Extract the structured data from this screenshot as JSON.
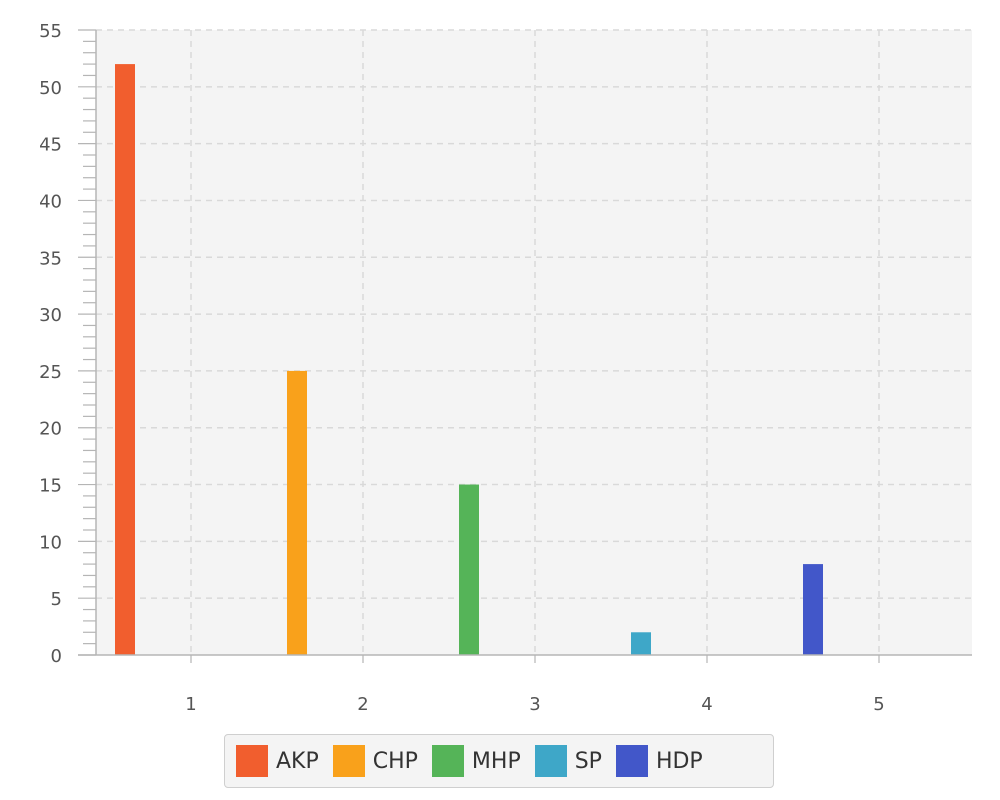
{
  "chart_data": {
    "type": "bar",
    "categories": [
      "1",
      "2",
      "3",
      "4",
      "5"
    ],
    "series": [
      {
        "name": "AKP",
        "color": "#f15e2e",
        "values": [
          52,
          null,
          null,
          null,
          null
        ]
      },
      {
        "name": "CHP",
        "color": "#f9a11b",
        "values": [
          null,
          25,
          null,
          null,
          null
        ]
      },
      {
        "name": "MHP",
        "color": "#55b458",
        "values": [
          null,
          null,
          15,
          null,
          null
        ]
      },
      {
        "name": "SP",
        "color": "#3ea7c8",
        "values": [
          null,
          null,
          null,
          2,
          null
        ]
      },
      {
        "name": "HDP",
        "color": "#4257c9",
        "values": [
          null,
          null,
          null,
          null,
          8
        ]
      }
    ],
    "ylim": [
      0,
      55
    ],
    "yticks": [
      0,
      5,
      10,
      15,
      20,
      25,
      30,
      35,
      40,
      45,
      50,
      55
    ],
    "grid": true,
    "legend_position": "bottom-center"
  }
}
